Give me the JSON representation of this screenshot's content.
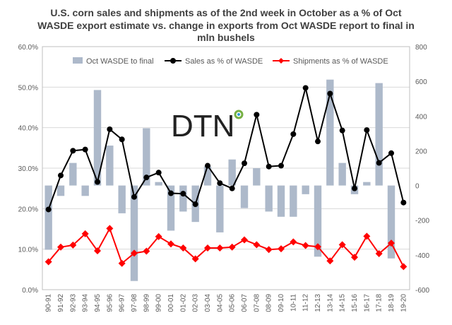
{
  "title_lines": [
    "U.S. corn sales and shipments as of the 2nd week in October as a %  of Oct",
    "WASDE  export estimate vs. change in exports from Oct WASDE report to final in",
    "mln bushels"
  ],
  "logo_text": "DTN",
  "colors": {
    "bars": "#adb9ca",
    "sales": "#000000",
    "shipments": "#ff0000",
    "grid": "#d9d9d9",
    "axis_text": "#595959",
    "title": "#404040"
  },
  "chart_data": {
    "type": "bar",
    "title": "U.S. corn sales and shipments as of the 2nd week in October as a %  of Oct WASDE  export estimate vs. change in exports from Oct WASDE report to final in mln bushels",
    "categories": [
      "90-91",
      "91-92",
      "92-93",
      "93-94",
      "94-95",
      "95-96",
      "96-97",
      "97-98",
      "98-99",
      "99-00",
      "00-01",
      "01-02",
      "02-03",
      "03-04",
      "04-05",
      "05-06",
      "06-07",
      "07-08",
      "08-09",
      "09-10",
      "10-11",
      "11-12",
      "12-13",
      "13-14",
      "14-15",
      "15-16",
      "16-17",
      "17-18",
      "18-19",
      "19-20"
    ],
    "y_left": {
      "min": 0,
      "max": 60,
      "step": 10,
      "tick_labels": [
        "0.0%",
        "10.0%",
        "20.0%",
        "30.0%",
        "40.0%",
        "50.0%",
        "60.0%"
      ]
    },
    "y_right": {
      "min": -600,
      "max": 800,
      "step": 200,
      "tick_labels": [
        "-600",
        "-400",
        "-200",
        "0",
        "200",
        "400",
        "600",
        "800"
      ]
    },
    "series": [
      {
        "name": "Oct WASDE to final",
        "kind": "bar",
        "axis": "right",
        "values": [
          -370,
          -60,
          130,
          -60,
          550,
          230,
          -160,
          -550,
          330,
          20,
          -260,
          -150,
          -210,
          110,
          -270,
          150,
          -130,
          100,
          -150,
          -180,
          -180,
          -50,
          -410,
          610,
          130,
          -50,
          20,
          590,
          -420,
          0
        ]
      },
      {
        "name": "Sales as % of WASDE",
        "kind": "line",
        "axis": "left",
        "values": [
          19.8,
          28.2,
          34.3,
          34.6,
          26.6,
          39.6,
          37.1,
          22.9,
          27.7,
          28.9,
          23.8,
          23.7,
          21.1,
          30.6,
          26.3,
          25.0,
          31.2,
          43.2,
          30.4,
          30.6,
          38.4,
          49.8,
          36.6,
          48.4,
          39.3,
          25.0,
          39.4,
          31.3,
          33.7,
          21.5
        ]
      },
      {
        "name": "Shipments as % of WASDE",
        "kind": "line",
        "axis": "left",
        "values": [
          6.9,
          10.5,
          11.0,
          13.8,
          9.6,
          15.1,
          6.5,
          9.0,
          9.5,
          13.1,
          11.3,
          10.3,
          7.6,
          10.3,
          10.3,
          10.5,
          12.3,
          11.1,
          9.9,
          10.1,
          11.8,
          10.9,
          10.6,
          7.1,
          11.1,
          8.0,
          13.2,
          8.9,
          11.5,
          5.7
        ]
      }
    ],
    "legend": {
      "position": "top",
      "entries": [
        "Oct WASDE to final",
        "Sales as % of WASDE",
        "Shipments as % of WASDE"
      ]
    },
    "grid": {
      "horizontal": true,
      "vertical": false
    }
  }
}
